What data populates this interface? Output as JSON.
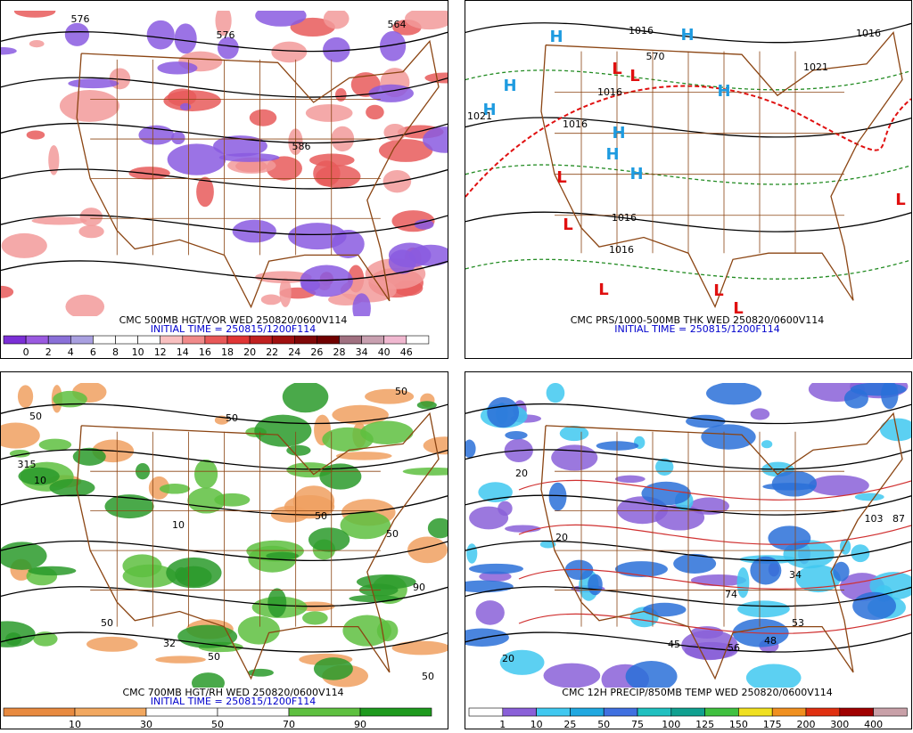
{
  "panels": [
    {
      "title": "CMC 500MB HGT/VOR WED 250820/0600V114",
      "initial_time": "INITIAL TIME = 250815/1200F114",
      "colorbar_labels": [
        "0",
        "2",
        "4",
        "6",
        "8",
        "10",
        "12",
        "14",
        "16",
        "18",
        "20",
        "22",
        "24",
        "26",
        "28",
        "34",
        "40",
        "46"
      ],
      "map_labels": [
        "576",
        "586",
        "564",
        "576"
      ]
    },
    {
      "title": "CMC PRS/1000-500MB THK WED 250820/0600V114",
      "initial_time": "INITIAL TIME = 250815/1200F114",
      "colorbar_labels": [],
      "map_labels": [
        "H",
        "H",
        "H",
        "H",
        "H",
        "H",
        "H",
        "H",
        "L",
        "L",
        "L",
        "L",
        "L",
        "L",
        "L",
        "L",
        "1016",
        "1016",
        "1016",
        "1021",
        "1016",
        "1016",
        "1016",
        "1021",
        "570"
      ]
    },
    {
      "title": "CMC 700MB HGT/RH WED 250820/0600V114",
      "initial_time": "INITIAL TIME = 250815/1200F114",
      "colorbar_labels": [
        "10",
        "30",
        "50",
        "70",
        "90"
      ],
      "map_labels": [
        "50",
        "50",
        "10",
        "315",
        "10",
        "50",
        "50",
        "50",
        "32",
        "50",
        "50",
        "90",
        "50"
      ]
    },
    {
      "title": "CMC 12H PRECIP/850MB TEMP WED 250820/0600V114",
      "initial_time": "",
      "colorbar_labels": [
        "1",
        "10",
        "25",
        "50",
        "75",
        "100",
        "125",
        "150",
        "175",
        "200",
        "300",
        "400"
      ],
      "map_labels": [
        "103",
        "87",
        "56",
        "48",
        "45",
        "34",
        "53",
        "74",
        "20",
        "20",
        "20"
      ]
    }
  ]
}
